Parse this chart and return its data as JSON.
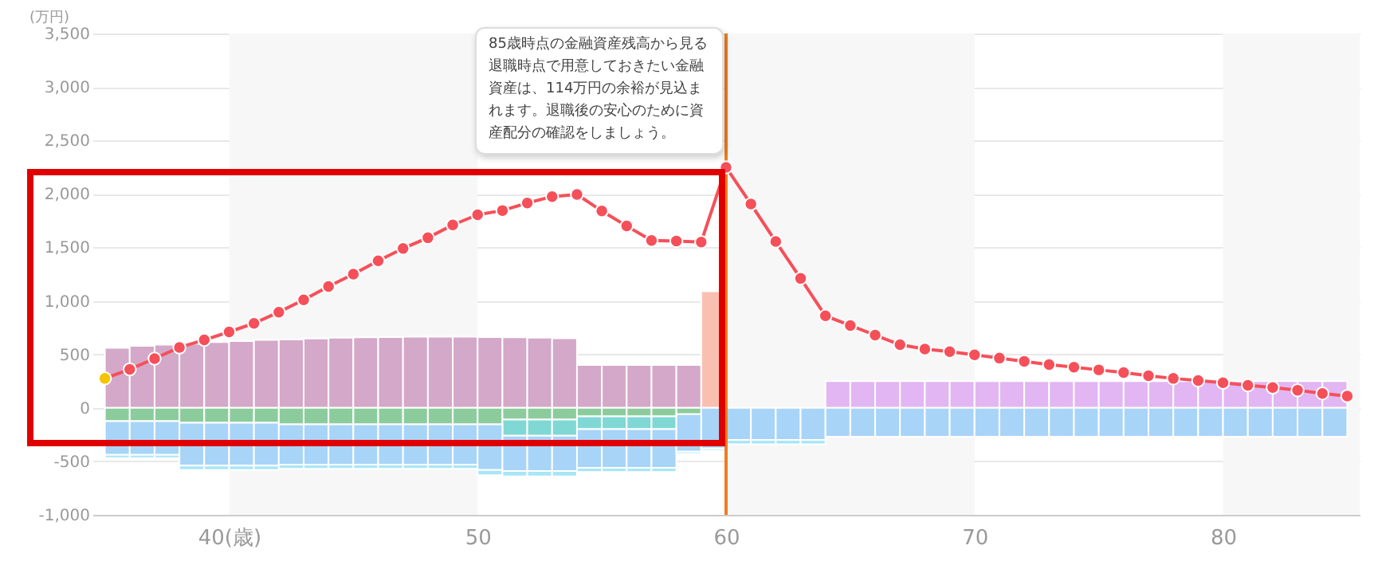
{
  "chart_data": {
    "type": "bar",
    "stacked": true,
    "ylabel": "(万円)",
    "annotations": [
      {
        "text": "85歳時点の金融資産残高から見る退職時点で用意しておきたい金融資産は、114万円の余裕が見込まれます。退職後の安心のために資産配分の確認をしましょう。",
        "x": 60,
        "y": 2249
      }
    ],
    "x": [
      35.5,
      36.5,
      37.5,
      38.5,
      39.5,
      40.5,
      41.5,
      42.5,
      43.5,
      44.5,
      45.5,
      46.5,
      47.5,
      48.5,
      49.5,
      50.5,
      51.5,
      52.5,
      53.5,
      54.5,
      55.5,
      56.5,
      57.5,
      58.5,
      59.5,
      60.5,
      61.5,
      62.5,
      63.5,
      64.5,
      65.5,
      66.5,
      67.5,
      68.5,
      69.5,
      70.5,
      71.5,
      72.5,
      73.5,
      74.5,
      75.5,
      76.5,
      77.5,
      78.5,
      79.5,
      80.5,
      81.5,
      82.5,
      83.5,
      84.5
    ],
    "series": [
      {
        "color": "#d4a8c8",
        "values": [
          560,
          580,
          590,
          600,
          615,
          625,
          635,
          640,
          648,
          655,
          660,
          662,
          665,
          665,
          665,
          662,
          660,
          655,
          650,
          400,
          400,
          400,
          400,
          400,
          null,
          null,
          null,
          null,
          null,
          null,
          null,
          null,
          null,
          null,
          null,
          null,
          null,
          null,
          null,
          null,
          null,
          null,
          null,
          null,
          null,
          null,
          null,
          null,
          null,
          null
        ]
      },
      {
        "color": "#f9c0b2",
        "values": [
          null,
          null,
          null,
          null,
          null,
          null,
          null,
          null,
          null,
          null,
          null,
          null,
          null,
          null,
          null,
          null,
          null,
          null,
          null,
          null,
          null,
          null,
          null,
          null,
          1090,
          null,
          null,
          null,
          null,
          null,
          null,
          null,
          null,
          null,
          null,
          null,
          null,
          null,
          null,
          null,
          null,
          null,
          null,
          null,
          null,
          null,
          null,
          null,
          null,
          null
        ]
      },
      {
        "color": "#e2b6f2",
        "values": [
          null,
          null,
          null,
          null,
          null,
          null,
          null,
          null,
          null,
          null,
          null,
          null,
          null,
          null,
          null,
          null,
          null,
          null,
          null,
          null,
          null,
          null,
          null,
          null,
          null,
          null,
          null,
          null,
          null,
          250,
          250,
          250,
          250,
          250,
          250,
          250,
          250,
          250,
          250,
          250,
          250,
          250,
          250,
          250,
          250,
          250,
          250,
          250,
          250,
          250
        ]
      },
      {
        "color": "#8ccc9c",
        "values": [
          -125,
          -125,
          -125,
          -140,
          -140,
          -140,
          -140,
          -155,
          -155,
          -155,
          -155,
          -155,
          -155,
          -155,
          -155,
          -155,
          -110,
          -110,
          -110,
          -80,
          -80,
          -80,
          -80,
          -60,
          null,
          null,
          null,
          null,
          null,
          null,
          null,
          null,
          null,
          null,
          null,
          null,
          null,
          null,
          null,
          null,
          null,
          null,
          null,
          null,
          null,
          null,
          null,
          null,
          null,
          null
        ]
      },
      {
        "color": "#80d8d4",
        "values": [
          null,
          null,
          null,
          null,
          null,
          null,
          null,
          null,
          null,
          null,
          null,
          null,
          null,
          null,
          null,
          null,
          -150,
          -150,
          -150,
          -120,
          -120,
          -120,
          -120,
          null,
          null,
          null,
          null,
          null,
          null,
          null,
          null,
          null,
          null,
          null,
          null,
          null,
          null,
          null,
          null,
          null,
          null,
          null,
          null,
          null,
          null,
          null,
          null,
          null,
          null,
          null
        ]
      },
      {
        "color": "#a8d4f8",
        "values": [
          -315,
          -315,
          -315,
          -400,
          -400,
          -400,
          -400,
          -375,
          -375,
          -375,
          -375,
          -375,
          -375,
          -375,
          -375,
          -425,
          -330,
          -330,
          -330,
          -360,
          -360,
          -360,
          -360,
          -350,
          -380,
          -300,
          -300,
          -300,
          -300,
          -270,
          -270,
          -270,
          -270,
          -270,
          -270,
          -270,
          -270,
          -270,
          -270,
          -270,
          -270,
          -270,
          -270,
          -270,
          -270,
          -270,
          -270,
          -270,
          -270,
          -270
        ]
      },
      {
        "color": "#a8e6f8",
        "values": [
          -30,
          -30,
          -30,
          -40,
          -40,
          -40,
          -40,
          -40,
          -40,
          -40,
          -40,
          -40,
          -40,
          -40,
          -40,
          -50,
          -50,
          -50,
          -50,
          -40,
          -40,
          -40,
          -40,
          -20,
          -20,
          -40,
          -40,
          -40,
          -40,
          null,
          null,
          null,
          null,
          null,
          null,
          null,
          null,
          null,
          null,
          null,
          null,
          null,
          null,
          null,
          null,
          null,
          null,
          null,
          null,
          null
        ]
      },
      {
        "type": "line",
        "color": "#f5505a",
        "x": [
          35,
          36,
          37,
          38,
          39,
          40,
          41,
          42,
          43,
          44,
          45,
          46,
          47,
          48,
          49,
          50,
          51,
          52,
          53,
          54,
          55,
          56,
          57,
          58,
          59,
          60,
          61,
          62,
          63,
          64,
          65,
          66,
          67,
          68,
          69,
          70,
          71,
          72,
          73,
          74,
          75,
          76,
          77,
          78,
          79,
          80,
          81,
          82,
          83,
          84,
          85
        ],
        "colors": [
          "#f5c400",
          "#f5505a",
          "#f5505a",
          "#f5505a",
          "#f5505a",
          "#f5505a",
          "#f5505a",
          "#f5505a",
          "#f5505a",
          "#f5505a",
          "#f5505a",
          "#f5505a",
          "#f5505a",
          "#f5505a",
          "#f5505a",
          "#f5505a",
          "#f5505a",
          "#f5505a",
          "#f5505a",
          "#f5505a",
          "#f5505a",
          "#f5505a",
          "#f5505a",
          "#f5505a",
          "#f5505a",
          "#f5505a",
          "#f5505a",
          "#f5505a",
          "#f5505a",
          "#f5505a",
          "#f5505a",
          "#f5505a",
          "#f5505a",
          "#f5505a",
          "#f5505a",
          "#f5505a",
          "#f5505a",
          "#f5505a",
          "#f5505a",
          "#f5505a",
          "#f5505a",
          "#f5505a",
          "#f5505a",
          "#f5505a",
          "#f5505a",
          "#f5505a",
          "#f5505a",
          "#f5505a",
          "#f5505a",
          "#f5505a",
          "#f5505a"
        ],
        "values": [
          275,
          360,
          460,
          565,
          635,
          710,
          790,
          895,
          1010,
          1135,
          1250,
          1375,
          1490,
          1590,
          1710,
          1805,
          1845,
          1915,
          1975,
          1995,
          1840,
          1700,
          1565,
          1560,
          1550,
          2249,
          1905,
          1555,
          1210,
          860,
          770,
          680,
          590,
          550,
          525,
          495,
          465,
          435,
          405,
          380,
          355,
          330,
          300,
          275,
          255,
          235,
          210,
          190,
          165,
          135,
          110
        ]
      }
    ],
    "xlim": [
      34.5,
      85.5
    ],
    "xticks": [
      {
        "value": 40,
        "label": "40(歳)"
      },
      50,
      60,
      70,
      80
    ],
    "ylim": [
      -1000,
      3500
    ],
    "yticks": [
      {
        "value": -1000,
        "label": "-1,000"
      },
      {
        "value": -500,
        "label": "-500"
      },
      0,
      500,
      {
        "value": 1000,
        "label": "1,000"
      },
      {
        "value": 1500,
        "label": "1,500"
      },
      {
        "value": 2000,
        "label": "2,000"
      },
      {
        "value": 2500,
        "label": "2,500"
      },
      {
        "value": 3000,
        "label": "3,000"
      },
      {
        "value": 3500,
        "label": "3,500"
      }
    ],
    "grid": "y",
    "marker": "circle",
    "line_style": "solid",
    "ref_lines": [
      {
        "axis": "x",
        "value": 60,
        "color": "#f07c1e"
      }
    ],
    "bands": [
      {
        "axis": "x",
        "from": 40,
        "to": 50,
        "color": "#f7f7f7"
      },
      {
        "axis": "x",
        "from": 60,
        "to": 70,
        "color": "#f7f7f7"
      },
      {
        "axis": "x",
        "from": 80,
        "to": 85.5,
        "color": "#f7f7f7"
      }
    ]
  }
}
